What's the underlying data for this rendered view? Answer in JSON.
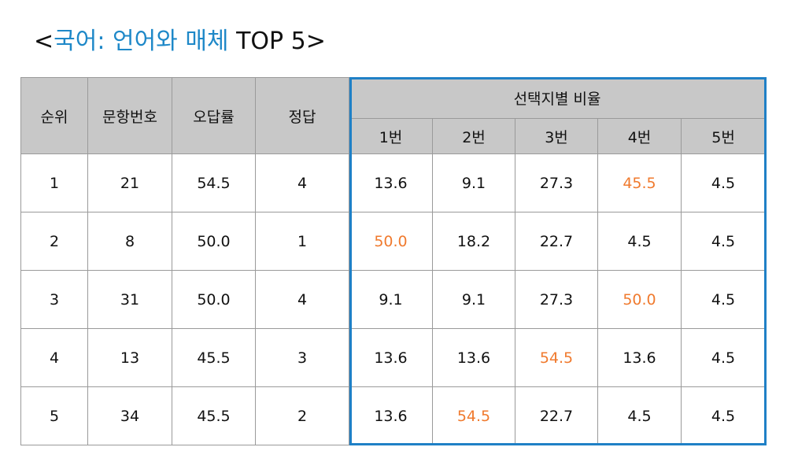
{
  "title": {
    "open": "<",
    "accent": "국어: 언어와 매체",
    "rest": " TOP 5>"
  },
  "table": {
    "headers": {
      "rank": "순위",
      "question_no": "문항번호",
      "error_rate": "오답률",
      "answer": "정답",
      "choice_ratio": "선택지별 비율",
      "choices": [
        "1번",
        "2번",
        "3번",
        "4번",
        "5번"
      ]
    },
    "rows": [
      {
        "rank": "1",
        "question_no": "21",
        "error_rate": "54.5",
        "answer": "4",
        "choices": [
          "13.6",
          "9.1",
          "27.3",
          "45.5",
          "4.5"
        ]
      },
      {
        "rank": "2",
        "question_no": "8",
        "error_rate": "50.0",
        "answer": "1",
        "choices": [
          "50.0",
          "18.2",
          "22.7",
          "4.5",
          "4.5"
        ]
      },
      {
        "rank": "3",
        "question_no": "31",
        "error_rate": "50.0",
        "answer": "4",
        "choices": [
          "9.1",
          "9.1",
          "27.3",
          "50.0",
          "4.5"
        ]
      },
      {
        "rank": "4",
        "question_no": "13",
        "error_rate": "45.5",
        "answer": "3",
        "choices": [
          "13.6",
          "13.6",
          "54.5",
          "13.6",
          "4.5"
        ]
      },
      {
        "rank": "5",
        "question_no": "34",
        "error_rate": "45.5",
        "answer": "2",
        "choices": [
          "13.6",
          "54.5",
          "22.7",
          "4.5",
          "4.5"
        ]
      }
    ]
  },
  "colors": {
    "title_accent": "#1e88c8",
    "correct_answer_highlight": "#f07a2e",
    "selection_box": "#1f80c6",
    "header_bg": "#c8c8c8"
  }
}
